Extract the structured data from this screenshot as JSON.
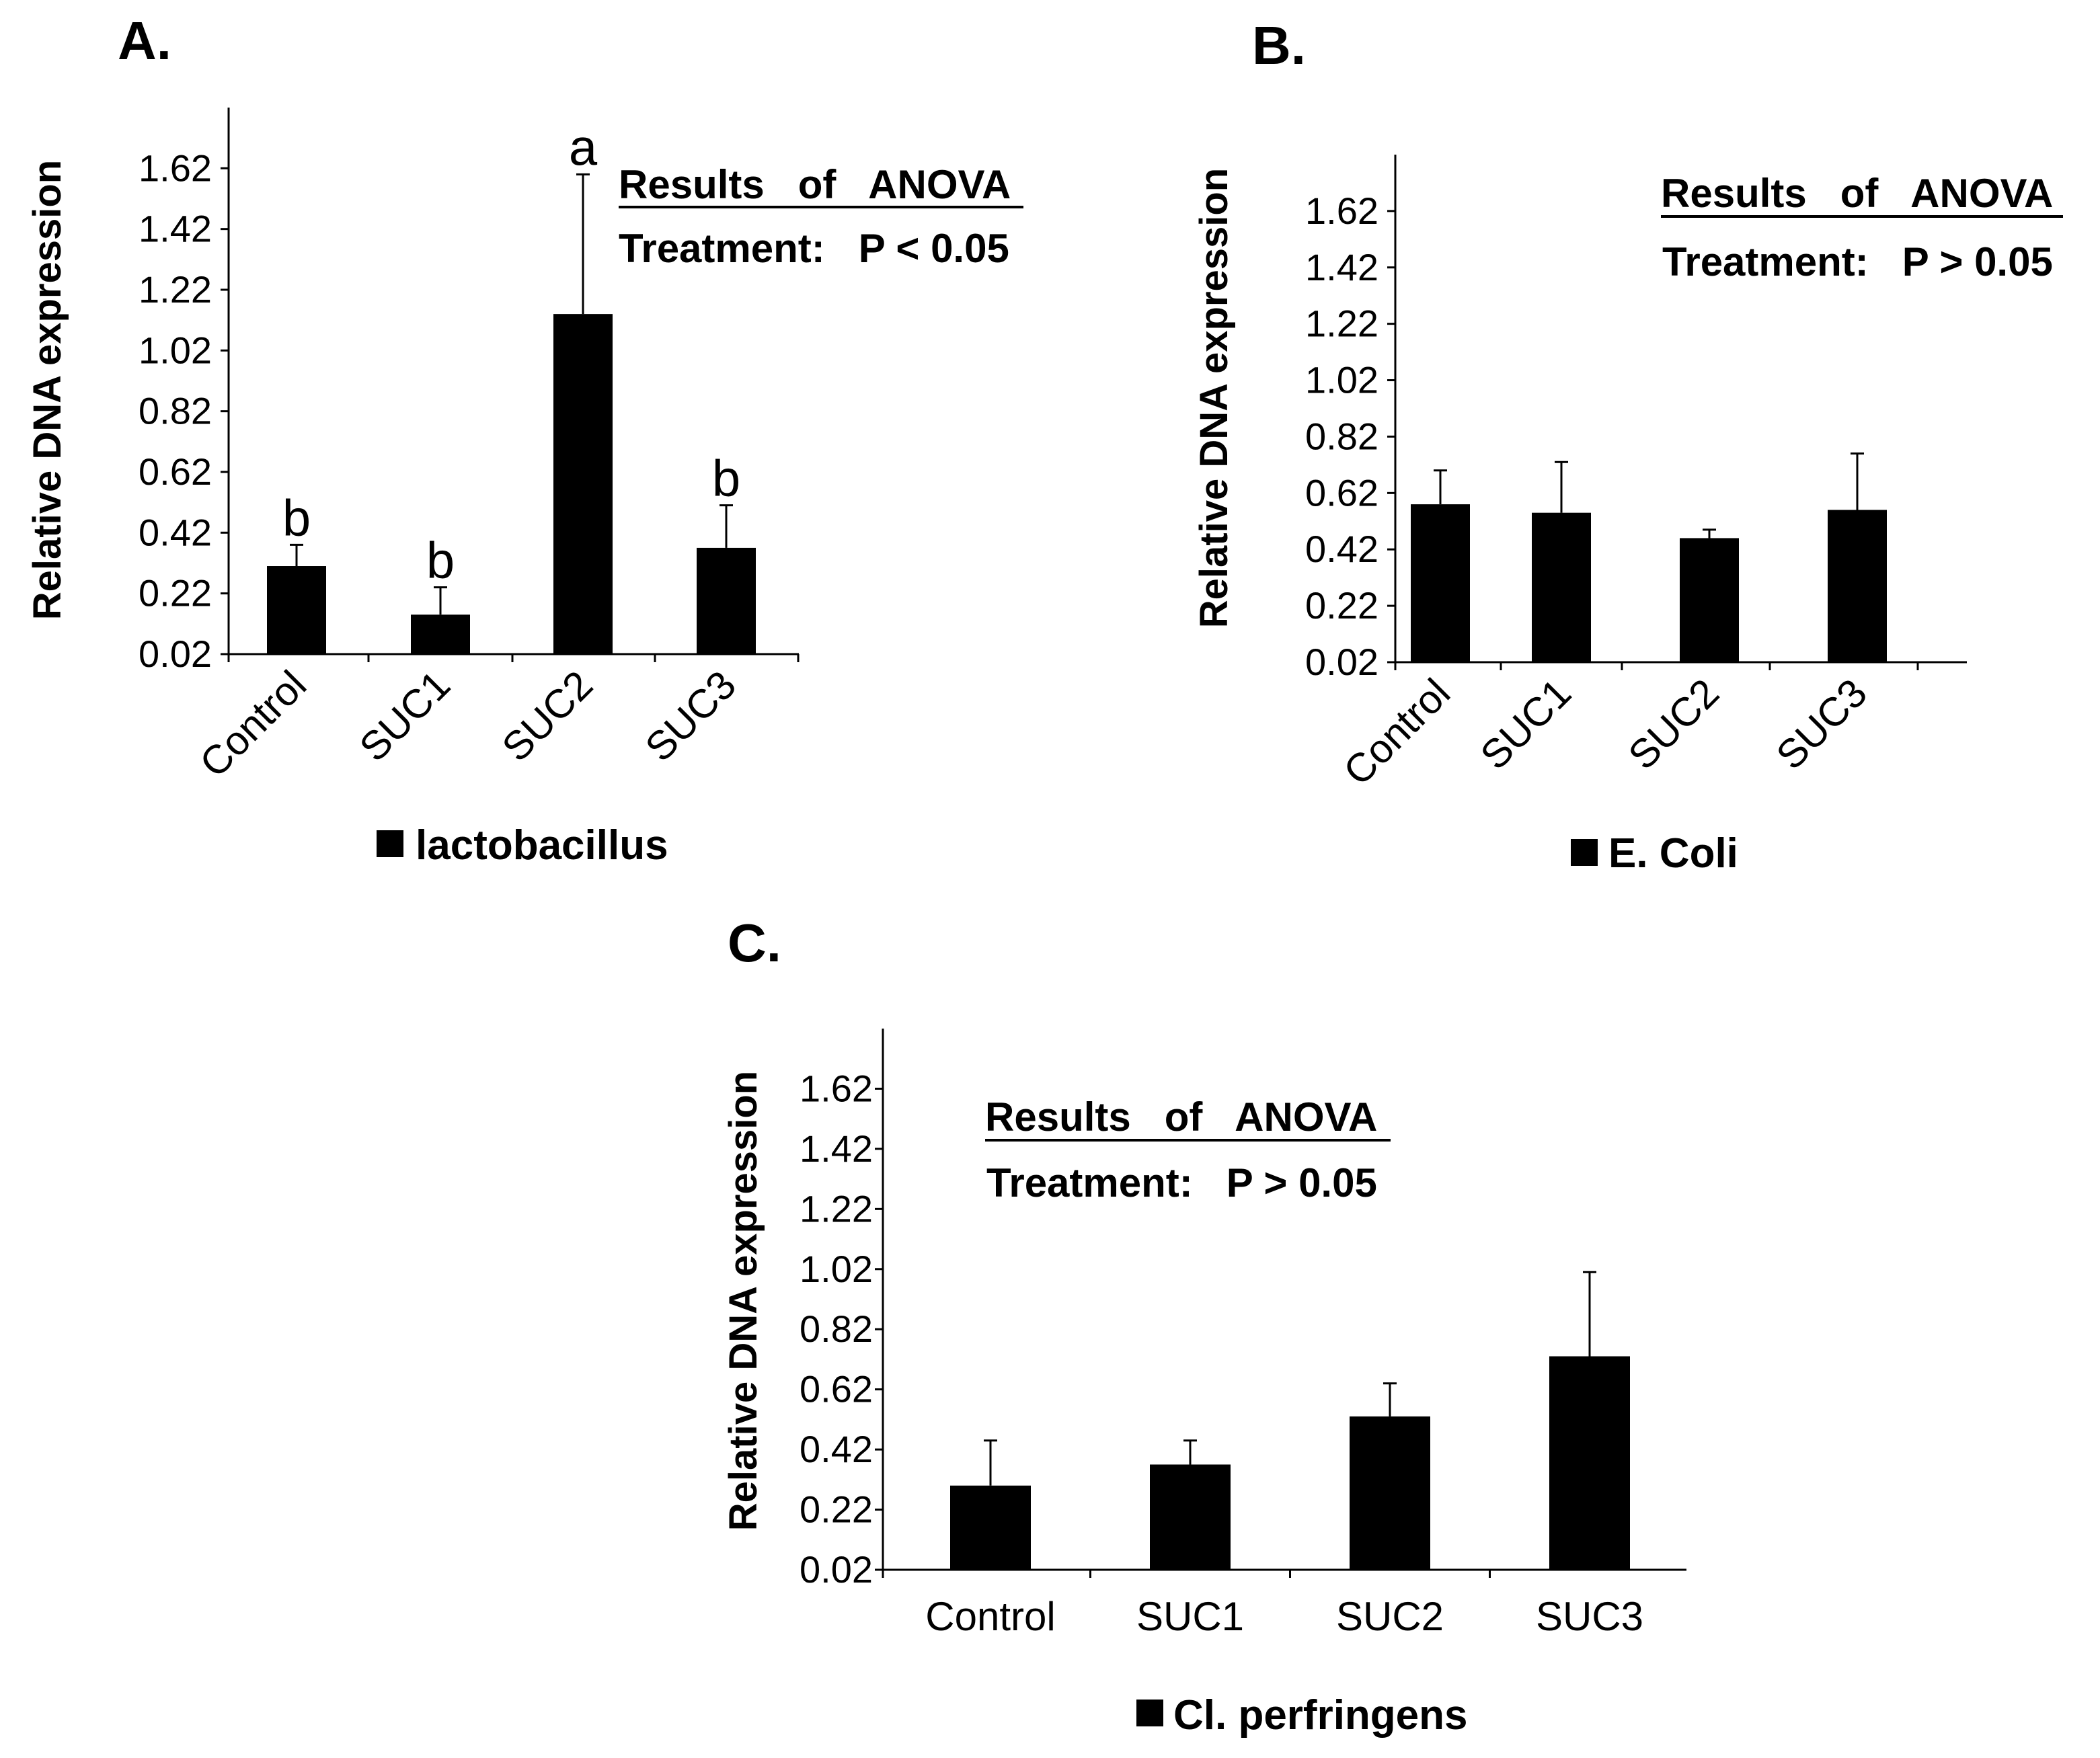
{
  "chart_data": [
    {
      "panel": "A.",
      "type": "bar",
      "categories": [
        "Control",
        "SUC1",
        "SUC2",
        "SUC3"
      ],
      "values": [
        0.31,
        0.15,
        1.14,
        0.37
      ],
      "errors": [
        0.07,
        0.09,
        0.46,
        0.14
      ],
      "significance": [
        "b",
        "b",
        "a",
        "b"
      ],
      "ylabel": "Relative DNA expression",
      "yticks": [
        "0.02",
        "0.22",
        "0.42",
        "0.62",
        "0.82",
        "1.02",
        "1.22",
        "1.42",
        "1.62"
      ],
      "ylim": [
        0.02,
        1.82
      ],
      "legend": "lactobacillus",
      "anova_title": "Results   of   ANOVA",
      "anova_result": "Treatment:   P < 0.05",
      "bar_color": "#000000",
      "xlabel_rotated": true
    },
    {
      "panel": "B.",
      "type": "bar",
      "categories": [
        "Control",
        "SUC1",
        "SUC2",
        "SUC3"
      ],
      "values": [
        0.58,
        0.55,
        0.46,
        0.56
      ],
      "errors": [
        0.12,
        0.18,
        0.03,
        0.2
      ],
      "ylabel": "Relative DNA expression",
      "yticks": [
        "0.02",
        "0.22",
        "0.42",
        "0.62",
        "0.82",
        "1.02",
        "1.22",
        "1.42",
        "1.62"
      ],
      "ylim": [
        0.02,
        1.82
      ],
      "legend": "E. Coli",
      "anova_title": "Results   of   ANOVA",
      "anova_result": "Treatment:   P > 0.05",
      "bar_color": "#000000",
      "xlabel_rotated": true
    },
    {
      "panel": "C.",
      "type": "bar",
      "categories": [
        "Control",
        "SUC1",
        "SUC2",
        "SUC3"
      ],
      "values": [
        0.3,
        0.37,
        0.53,
        0.73
      ],
      "errors": [
        0.15,
        0.08,
        0.11,
        0.28
      ],
      "ylabel": "Relative DNA expression",
      "yticks": [
        "0.02",
        "0.22",
        "0.42",
        "0.62",
        "0.82",
        "1.02",
        "1.22",
        "1.42",
        "1.62"
      ],
      "ylim": [
        0.02,
        1.82
      ],
      "legend": "Cl. perfringens",
      "anova_title": "Results   of   ANOVA",
      "anova_result": "Treatment:   P > 0.05",
      "bar_color": "#000000",
      "xlabel_rotated": false
    }
  ]
}
